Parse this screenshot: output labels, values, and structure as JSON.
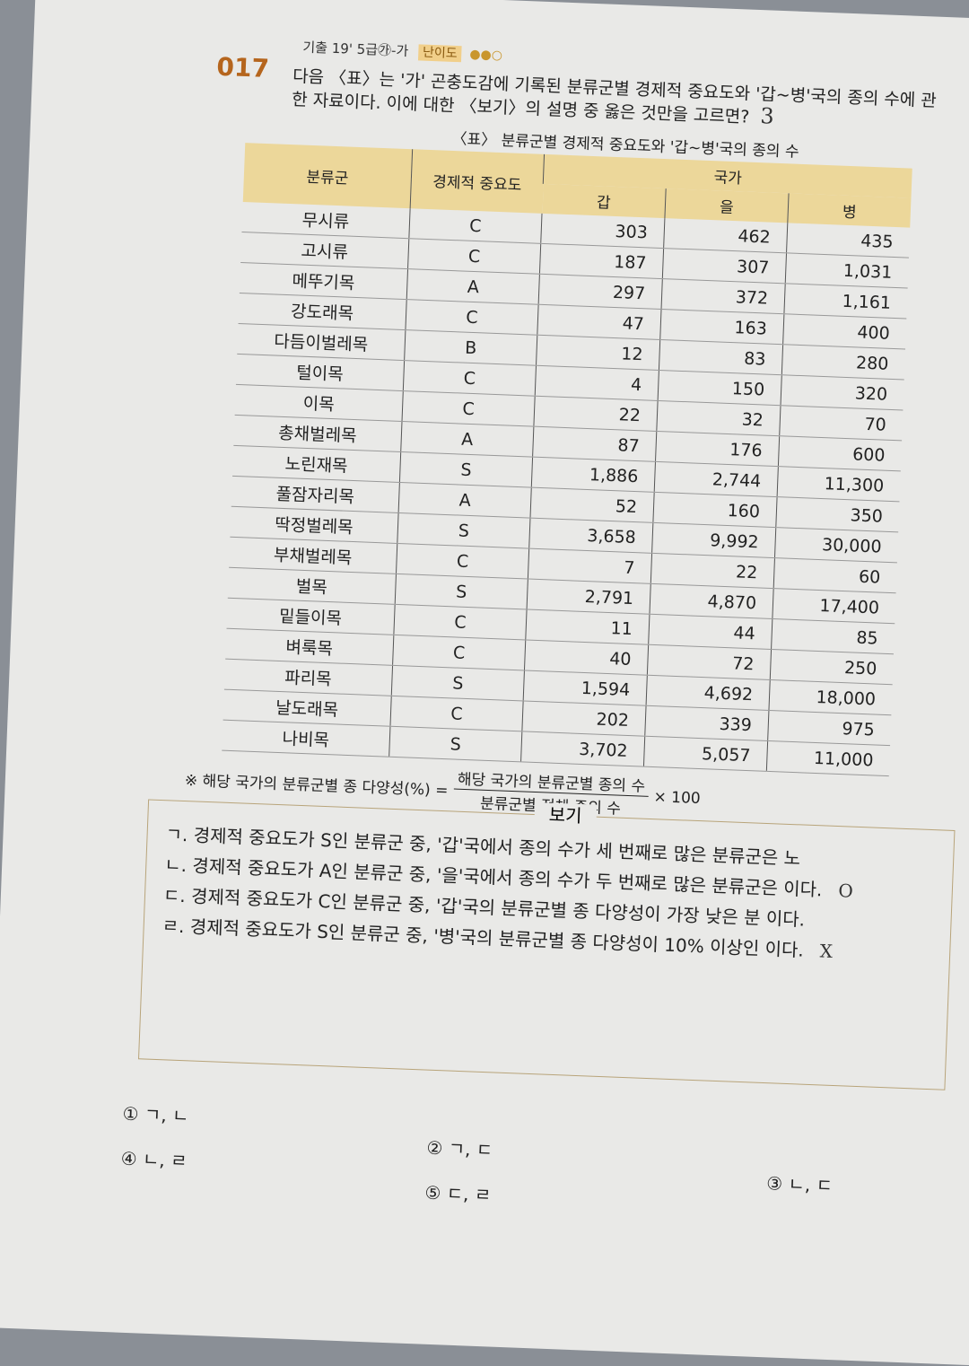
{
  "question": {
    "number": "017",
    "source": "기출 19' 5급㉮-가",
    "difficulty_label": "난이도",
    "difficulty_dots": "●●○",
    "text": "다음 〈표〉는 '가' 곤충도감에 기록된 분류군별 경제적 중요도와 '갑~병'국의 종의 수에 관한 자료이다. 이에 대한 〈보기〉의 설명 중 옳은 것만을 고르면?",
    "handwritten_answer": "3"
  },
  "table": {
    "title": "〈표〉 분류군별 경제적 중요도와 '갑~병'국의 종의 수",
    "headers": {
      "group": "분류군",
      "importance": "경제적 중요도",
      "country": "국가",
      "c1": "갑",
      "c2": "을",
      "c3": "병"
    },
    "rows": [
      [
        "무시류",
        "C",
        "303",
        "462",
        "435"
      ],
      [
        "고시류",
        "C",
        "187",
        "307",
        "1,031"
      ],
      [
        "메뚜기목",
        "A",
        "297",
        "372",
        "1,161"
      ],
      [
        "강도래목",
        "C",
        "47",
        "163",
        "400"
      ],
      [
        "다듬이벌레목",
        "B",
        "12",
        "83",
        "280"
      ],
      [
        "털이목",
        "C",
        "4",
        "150",
        "320"
      ],
      [
        "이목",
        "C",
        "22",
        "32",
        "70"
      ],
      [
        "총채벌레목",
        "A",
        "87",
        "176",
        "600"
      ],
      [
        "노린재목",
        "S",
        "1,886",
        "2,744",
        "11,300"
      ],
      [
        "풀잠자리목",
        "A",
        "52",
        "160",
        "350"
      ],
      [
        "딱정벌레목",
        "S",
        "3,658",
        "9,992",
        "30,000"
      ],
      [
        "부채벌레목",
        "C",
        "7",
        "22",
        "60"
      ],
      [
        "벌목",
        "S",
        "2,791",
        "4,870",
        "17,400"
      ],
      [
        "밑들이목",
        "C",
        "11",
        "44",
        "85"
      ],
      [
        "벼룩목",
        "C",
        "40",
        "72",
        "250"
      ],
      [
        "파리목",
        "S",
        "1,594",
        "4,692",
        "18,000"
      ],
      [
        "날도래목",
        "C",
        "202",
        "339",
        "975"
      ],
      [
        "나비목",
        "S",
        "3,702",
        "5,057",
        "11,000"
      ]
    ],
    "note_prefix": "※ 해당 국가의 분류군별 종 다양성(%) =",
    "note_numerator": "해당 국가의 분류군별 종의 수",
    "note_denominator": "분류군별 전체 종의 수",
    "note_suffix": "× 100"
  },
  "bogi": {
    "title": "보기",
    "items": [
      "ㄱ. 경제적 중요도가 S인 분류군 중, '갑'국에서 종의 수가 세 번째로 많은 분류군은 노",
      "ㄴ. 경제적 중요도가 A인 분류군 중, '을'국에서 종의 수가 두 번째로 많은 분류군은 이다.",
      "ㄷ. 경제적 중요도가 C인 분류군 중, '갑'국의 분류군별 종 다양성이 가장 낮은 분 이다.",
      "ㄹ. 경제적 중요도가 S인 분류군 중, '병'국의 분류군별 종 다양성이 10% 이상인 이다."
    ],
    "marks": [
      "",
      "O",
      "",
      "X"
    ]
  },
  "choices": [
    "① ㄱ, ㄴ",
    "② ㄱ, ㄷ",
    "③ ㄴ, ㄷ",
    "④ ㄴ, ㄹ",
    "⑤ ㄷ, ㄹ"
  ]
}
